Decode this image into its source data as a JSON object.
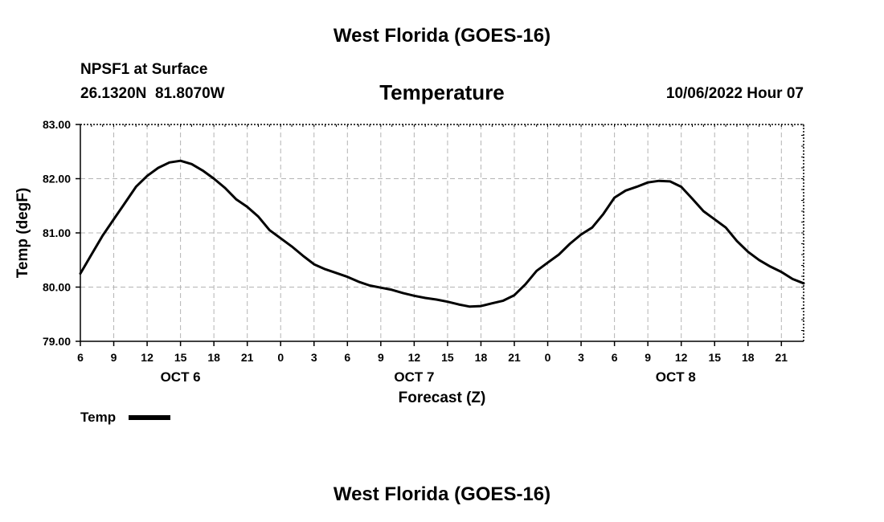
{
  "header": {
    "top_title": "West Florida (GOES-16)",
    "station_line1": "NPSF1 at Surface",
    "station_line2": "26.1320N  81.8070W",
    "chart_title": "Temperature",
    "timestamp": "10/06/2022 Hour 07"
  },
  "legend": {
    "label": "Temp"
  },
  "footer": {
    "bottom_title": "West Florida (GOES-16)"
  },
  "colors": {
    "line": "#000000",
    "grid": "#b4b4b4",
    "background": "#ffffff"
  },
  "chart_data": {
    "type": "line",
    "title": "Temperature",
    "xlabel": "Forecast (Z)",
    "ylabel": "Temp (degF)",
    "ylim": [
      79.0,
      83.0
    ],
    "xlim": [
      6,
      71
    ],
    "yticks": [
      79.0,
      80.0,
      81.0,
      82.0,
      83.0
    ],
    "ytick_labels": [
      "79.00",
      "80.00",
      "81.00",
      "82.00",
      "83.00"
    ],
    "xticks": [
      6,
      9,
      12,
      15,
      18,
      21,
      24,
      27,
      30,
      33,
      36,
      39,
      42,
      45,
      48,
      51,
      54,
      57,
      60,
      63,
      66,
      69
    ],
    "xtick_labels": [
      "6",
      "9",
      "12",
      "15",
      "18",
      "21",
      "0",
      "3",
      "6",
      "9",
      "12",
      "15",
      "18",
      "21",
      "0",
      "3",
      "6",
      "9",
      "12",
      "15",
      "18",
      "21"
    ],
    "day_labels": [
      {
        "label": "OCT 6",
        "x": 15
      },
      {
        "label": "OCT 7",
        "x": 36
      },
      {
        "label": "OCT 8",
        "x": 59.5
      }
    ],
    "grid": true,
    "legend": "bottom-left",
    "series": [
      {
        "name": "Temp",
        "x": [
          6,
          7,
          8,
          9,
          10,
          11,
          12,
          13,
          14,
          15,
          16,
          17,
          18,
          19,
          20,
          21,
          22,
          23,
          24,
          25,
          26,
          27,
          28,
          29,
          30,
          31,
          32,
          33,
          34,
          35,
          36,
          37,
          38,
          39,
          40,
          41,
          42,
          43,
          44,
          45,
          46,
          47,
          48,
          49,
          50,
          51,
          52,
          53,
          54,
          55,
          56,
          57,
          58,
          59,
          60,
          61,
          62,
          63,
          64,
          65,
          66,
          67,
          68,
          69,
          70,
          71
        ],
        "values": [
          80.25,
          80.6,
          80.95,
          81.25,
          81.55,
          81.85,
          82.05,
          82.2,
          82.3,
          82.33,
          82.27,
          82.15,
          82.0,
          81.83,
          81.62,
          81.48,
          81.3,
          81.05,
          80.9,
          80.75,
          80.58,
          80.42,
          80.33,
          80.26,
          80.19,
          80.1,
          80.03,
          79.99,
          79.95,
          79.89,
          79.84,
          79.8,
          79.77,
          79.73,
          79.68,
          79.64,
          79.65,
          79.7,
          79.75,
          79.85,
          80.05,
          80.3,
          80.45,
          80.6,
          80.8,
          80.97,
          81.1,
          81.35,
          81.65,
          81.78,
          81.85,
          81.93,
          81.96,
          81.95,
          81.85,
          81.63,
          81.4,
          81.25,
          81.1,
          80.85,
          80.65,
          80.5,
          80.38,
          80.28,
          80.15,
          80.07
        ]
      }
    ]
  }
}
